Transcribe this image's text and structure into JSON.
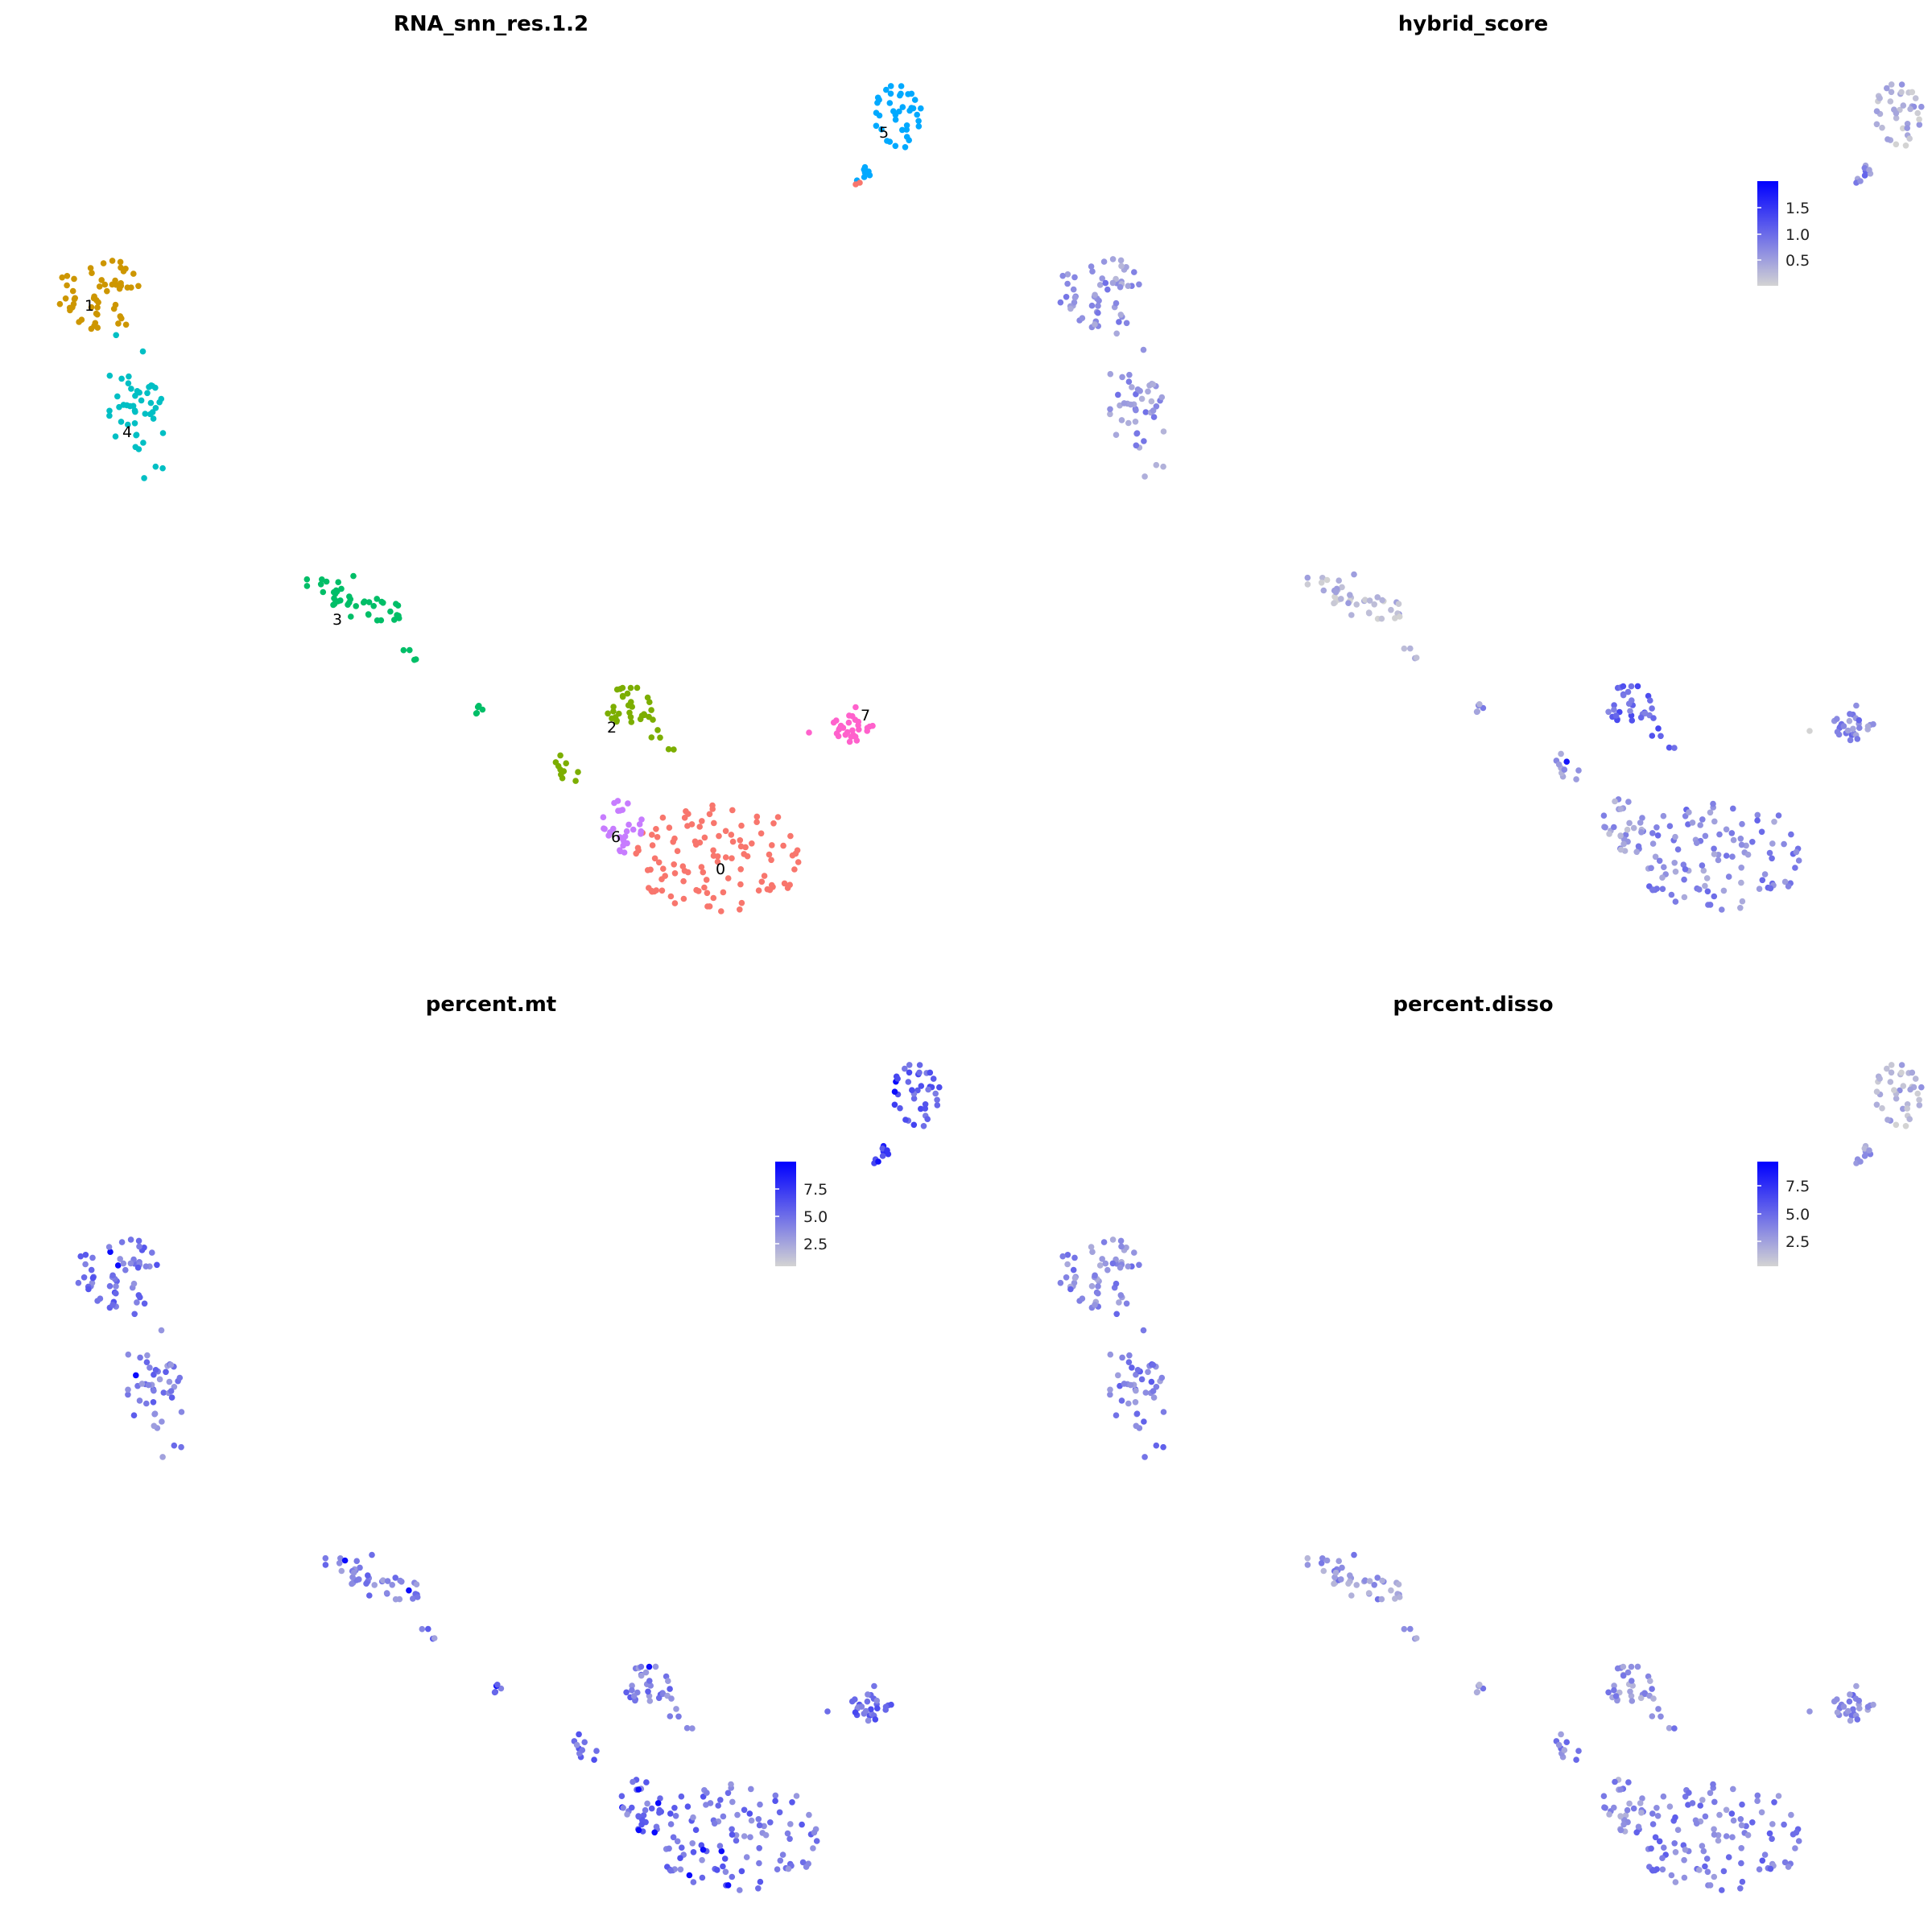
{
  "chart_data": [
    {
      "type": "scatter",
      "title": "RNA_snn_res.1.2",
      "color_mode": "categorical",
      "legend": "none",
      "grid": false,
      "clusters": [
        {
          "label": "0",
          "color": "#F8766D"
        },
        {
          "label": "1",
          "color": "#CD9600"
        },
        {
          "label": "2",
          "color": "#7CAE00"
        },
        {
          "label": "3",
          "color": "#00BE67"
        },
        {
          "label": "4",
          "color": "#00BFC4"
        },
        {
          "label": "5",
          "color": "#00A9FF"
        },
        {
          "label": "6",
          "color": "#C77CFF"
        },
        {
          "label": "7",
          "color": "#FF61CC"
        }
      ]
    },
    {
      "type": "scatter",
      "title": "hybrid_score",
      "color_mode": "continuous",
      "legend": "top-right colorbar",
      "grid": false,
      "colorscale": {
        "low": "#D3D3D3",
        "high": "#0000FF",
        "min": 0.1,
        "max": 1.85
      },
      "colorbar_ticks": [
        "0.5",
        "1.0",
        "1.5"
      ]
    },
    {
      "type": "scatter",
      "title": "percent.mt",
      "color_mode": "continuous",
      "legend": "top-right colorbar",
      "grid": false,
      "colorscale": {
        "low": "#D3D3D3",
        "high": "#0000FF",
        "min": 0.5,
        "max": 9.5
      },
      "colorbar_ticks": [
        "2.5",
        "5.0",
        "7.5"
      ]
    },
    {
      "type": "scatter",
      "title": "percent.disso",
      "color_mode": "continuous",
      "legend": "top-right colorbar",
      "grid": false,
      "colorscale": {
        "low": "#D3D3D3",
        "high": "#0000FF",
        "min": 0.5,
        "max": 9.5
      },
      "colorbar_ticks": [
        "2.5",
        "5.0",
        "7.5"
      ]
    }
  ]
}
